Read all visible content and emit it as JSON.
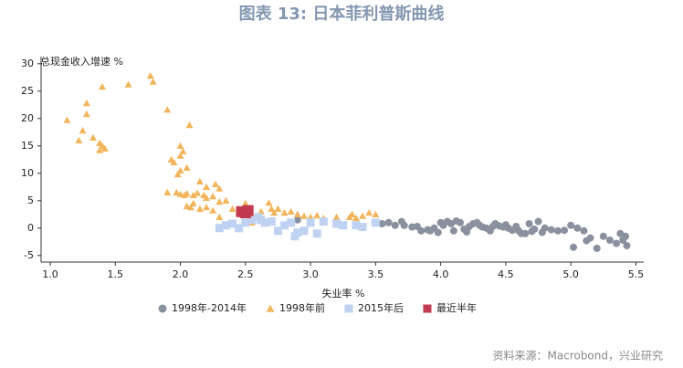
{
  "chart_data": {
    "type": "scatter",
    "title": "图表 13: 日本菲利普斯曲线",
    "y_label": "总现金收入增速 %",
    "x_label": "失业率 %",
    "source": "资料来源：Macrobond，兴业研究",
    "xlim": [
      0.93,
      5.56
    ],
    "ylim": [
      -6.2,
      31.3
    ],
    "xticks": [
      {
        "value": 1,
        "label": "1.0"
      },
      1.5,
      {
        "value": 2,
        "label": "2.0"
      },
      2.5,
      {
        "value": 3,
        "label": "3.0"
      },
      3.5,
      {
        "value": 4,
        "label": "4.0"
      },
      4.5,
      {
        "value": 5,
        "label": "5.0"
      },
      5.5
    ],
    "yticks": [
      -5,
      0,
      5,
      10,
      15,
      20,
      25,
      30
    ],
    "series": [
      {
        "name": "1998年-2014年",
        "color": "#8a909e",
        "marker": "circle",
        "x": [
          2.9,
          3.55,
          3.6,
          3.65,
          3.7,
          3.72,
          3.78,
          3.82,
          3.85,
          3.9,
          3.92,
          3.95,
          3.98,
          4.0,
          4.02,
          4.05,
          4.08,
          4.1,
          4.12,
          4.15,
          4.18,
          4.2,
          4.22,
          4.25,
          4.28,
          4.3,
          4.32,
          4.35,
          4.38,
          4.4,
          4.42,
          4.45,
          4.48,
          4.5,
          4.52,
          4.55,
          4.58,
          4.6,
          4.62,
          4.65,
          4.68,
          4.7,
          4.72,
          4.75,
          4.78,
          4.8,
          4.85,
          4.9,
          4.95,
          5.0,
          5.02,
          5.05,
          5.1,
          5.12,
          5.15,
          5.2,
          5.25,
          5.3,
          5.35,
          5.38,
          5.4,
          5.42,
          5.43
        ],
        "y": [
          1.5,
          0.8,
          1,
          0.5,
          1.2,
          0.5,
          0.2,
          0.3,
          -0.5,
          -0.3,
          -0.5,
          0,
          -0.8,
          1,
          0.5,
          1.2,
          0.8,
          -0.5,
          1.3,
          1,
          -0.2,
          -0.7,
          0.3,
          0.8,
          1,
          0.5,
          0.2,
          0,
          -0.5,
          0.3,
          0.8,
          0.4,
          0.2,
          0.6,
          0,
          -0.4,
          0.3,
          -0.5,
          -1,
          -1,
          0.8,
          -0.6,
          -0.2,
          1.2,
          -0.8,
          0,
          -0.3,
          -0.5,
          -0.4,
          0.5,
          -3.5,
          0,
          -0.5,
          -2.3,
          -1.8,
          -3.7,
          -1.5,
          -2.2,
          -2.8,
          -1,
          -2.2,
          -1.5,
          -3.2
        ]
      },
      {
        "name": "1998年前",
        "color": "#f2b55c",
        "marker": "triangle",
        "x": [
          1.13,
          1.22,
          1.25,
          1.28,
          1.28,
          1.33,
          1.38,
          1.38,
          1.4,
          1.4,
          1.42,
          1.6,
          1.77,
          1.79,
          1.9,
          1.93,
          1.95,
          2.0,
          2.0,
          2.02,
          2.0,
          1.98,
          2.05,
          2.07,
          1.9,
          1.97,
          2.0,
          2.03,
          2.05,
          2.1,
          2.13,
          2.15,
          2.18,
          2.2,
          2.2,
          2.25,
          2.27,
          2.3,
          2.3,
          2.35,
          2.05,
          2.08,
          2.1,
          2.15,
          2.2,
          2.25,
          2.3,
          2.4,
          2.45,
          2.5,
          2.55,
          2.55,
          2.62,
          2.68,
          2.7,
          2.72,
          2.75,
          2.8,
          2.85,
          2.9,
          2.95,
          3.0,
          3.05,
          3.1,
          3.2,
          3.3,
          3.32,
          3.35,
          3.4,
          3.45,
          3.5
        ],
        "y": [
          19.7,
          16,
          17.8,
          22.8,
          20.8,
          16.5,
          15.5,
          14.2,
          25.8,
          15,
          14.5,
          26.2,
          27.8,
          26.7,
          21.6,
          12.5,
          12,
          13.2,
          15,
          14,
          10.5,
          9.8,
          11,
          18.8,
          6.5,
          6.5,
          6.2,
          6,
          6.3,
          6,
          6.4,
          8.5,
          6,
          7.5,
          5.5,
          5.8,
          8,
          7.2,
          4.8,
          5,
          4,
          3.8,
          4.5,
          3.5,
          3.8,
          3.2,
          2,
          3.5,
          3,
          4.5,
          2.5,
          1,
          3,
          4.6,
          3.5,
          2.8,
          3.5,
          2.8,
          3,
          2.5,
          2.2,
          2,
          2.3,
          1.8,
          2,
          2,
          2.5,
          1.8,
          2.2,
          2.8,
          2.5
        ]
      },
      {
        "name": "2015年后",
        "color": "#bfd2f2",
        "marker": "square",
        "x": [
          2.3,
          2.35,
          2.4,
          2.45,
          2.5,
          2.55,
          2.6,
          2.62,
          2.65,
          2.7,
          2.75,
          2.8,
          2.85,
          2.88,
          2.9,
          2.95,
          3.0,
          3.05,
          3.1,
          3.2,
          3.25,
          3.35,
          3.4,
          3.5
        ],
        "y": [
          0,
          0.5,
          0.8,
          0,
          1,
          1.5,
          2,
          1.5,
          1,
          1.2,
          -0.5,
          0.5,
          1,
          -1.5,
          -0.8,
          -0.5,
          1,
          -1,
          1.2,
          0.8,
          0.5,
          0.5,
          0.2,
          1
        ]
      },
      {
        "name": "最近半年",
        "color": "#c23a4f",
        "marker": "square",
        "x": [
          2.47,
          2.5,
          2.52
        ],
        "y": [
          3,
          2.8,
          3.2
        ]
      }
    ]
  }
}
